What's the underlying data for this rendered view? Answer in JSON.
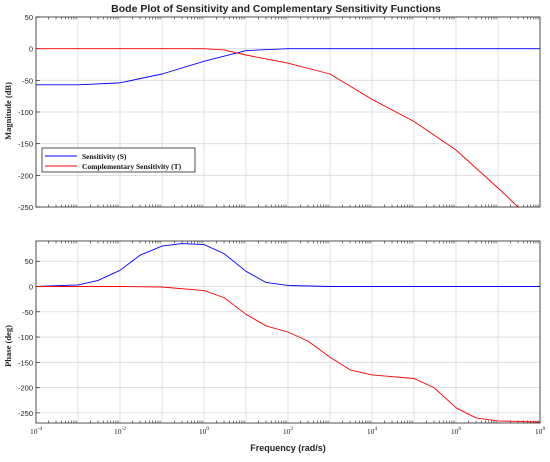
{
  "chart_data": {
    "type": "line",
    "title": "Bode Plot of Sensitivity and Complementary Sensitivity Functions",
    "xlabel": "Frequency (rad/s)",
    "x_scale": "log",
    "xlim": [
      0.0001,
      100000000
    ],
    "x_tick_labels": [
      {
        "base": "10",
        "exp": "-4"
      },
      {
        "base": "10",
        "exp": "-2"
      },
      {
        "base": "10",
        "exp": "0"
      },
      {
        "base": "10",
        "exp": "2"
      },
      {
        "base": "10",
        "exp": "4"
      },
      {
        "base": "10",
        "exp": "6"
      },
      {
        "base": "10",
        "exp": "8"
      }
    ],
    "colors": {
      "sensitivity": "#0000ff",
      "complementary": "#ff0000",
      "grid": "#d9d9d9",
      "axis": "#262626"
    },
    "grid": true,
    "legend_placement": "lower-left of magnitude subplot",
    "subplots": [
      {
        "id": "magnitude",
        "ylabel": "Magnitude (dB)",
        "ylim": [
          -250,
          50
        ],
        "y_ticks": [
          50,
          0,
          -50,
          -100,
          -150,
          -200,
          -250
        ],
        "series": [
          {
            "name": "Sensitivity (S)",
            "color": "#0000ff",
            "points": [
              [
                0.0001,
                -57
              ],
              [
                0.001,
                -57
              ],
              [
                0.01,
                -54
              ],
              [
                0.1,
                -40
              ],
              [
                1,
                -20
              ],
              [
                10,
                -3
              ],
              [
                100,
                0
              ],
              [
                1000,
                0
              ],
              [
                10000,
                0
              ],
              [
                100000,
                0
              ],
              [
                1000000,
                0
              ],
              [
                10000000,
                0
              ],
              [
                100000000,
                0
              ]
            ]
          },
          {
            "name": "Complementary Sensitivity (T)",
            "color": "#ff0000",
            "points": [
              [
                0.0001,
                0
              ],
              [
                0.01,
                0
              ],
              [
                0.1,
                0
              ],
              [
                1,
                0
              ],
              [
                3,
                -2
              ],
              [
                10,
                -10
              ],
              [
                100,
                -23
              ],
              [
                1000,
                -40
              ],
              [
                10000,
                -80
              ],
              [
                100000,
                -115
              ],
              [
                1000000,
                -160
              ],
              [
                10000000,
                -220
              ],
              [
                30000000,
                -250
              ]
            ]
          }
        ]
      },
      {
        "id": "phase",
        "ylabel": "Phase (deg)",
        "ylim": [
          -270,
          90
        ],
        "y_ticks": [
          50,
          0,
          -50,
          -100,
          -150,
          -200,
          -250
        ],
        "series": [
          {
            "name": "Sensitivity (S)",
            "color": "#0000ff",
            "points": [
              [
                0.0001,
                0
              ],
              [
                0.001,
                3
              ],
              [
                0.003,
                12
              ],
              [
                0.01,
                32
              ],
              [
                0.03,
                62
              ],
              [
                0.1,
                80
              ],
              [
                0.3,
                85
              ],
              [
                1,
                83
              ],
              [
                3,
                65
              ],
              [
                10,
                30
              ],
              [
                30,
                8
              ],
              [
                100,
                2
              ],
              [
                1000,
                0
              ],
              [
                100000,
                0
              ],
              [
                100000000,
                0
              ]
            ]
          },
          {
            "name": "Complementary Sensitivity (T)",
            "color": "#ff0000",
            "points": [
              [
                0.0001,
                0
              ],
              [
                0.01,
                0
              ],
              [
                0.1,
                -1
              ],
              [
                1,
                -8
              ],
              [
                3,
                -22
              ],
              [
                10,
                -55
              ],
              [
                30,
                -78
              ],
              [
                100,
                -90
              ],
              [
                300,
                -108
              ],
              [
                1000,
                -140
              ],
              [
                3000,
                -165
              ],
              [
                10000,
                -175
              ],
              [
                100000,
                -182
              ],
              [
                300000,
                -200
              ],
              [
                1000000,
                -240
              ],
              [
                3000000,
                -260
              ],
              [
                10000000,
                -266
              ],
              [
                100000000,
                -268
              ]
            ]
          }
        ]
      }
    ]
  }
}
